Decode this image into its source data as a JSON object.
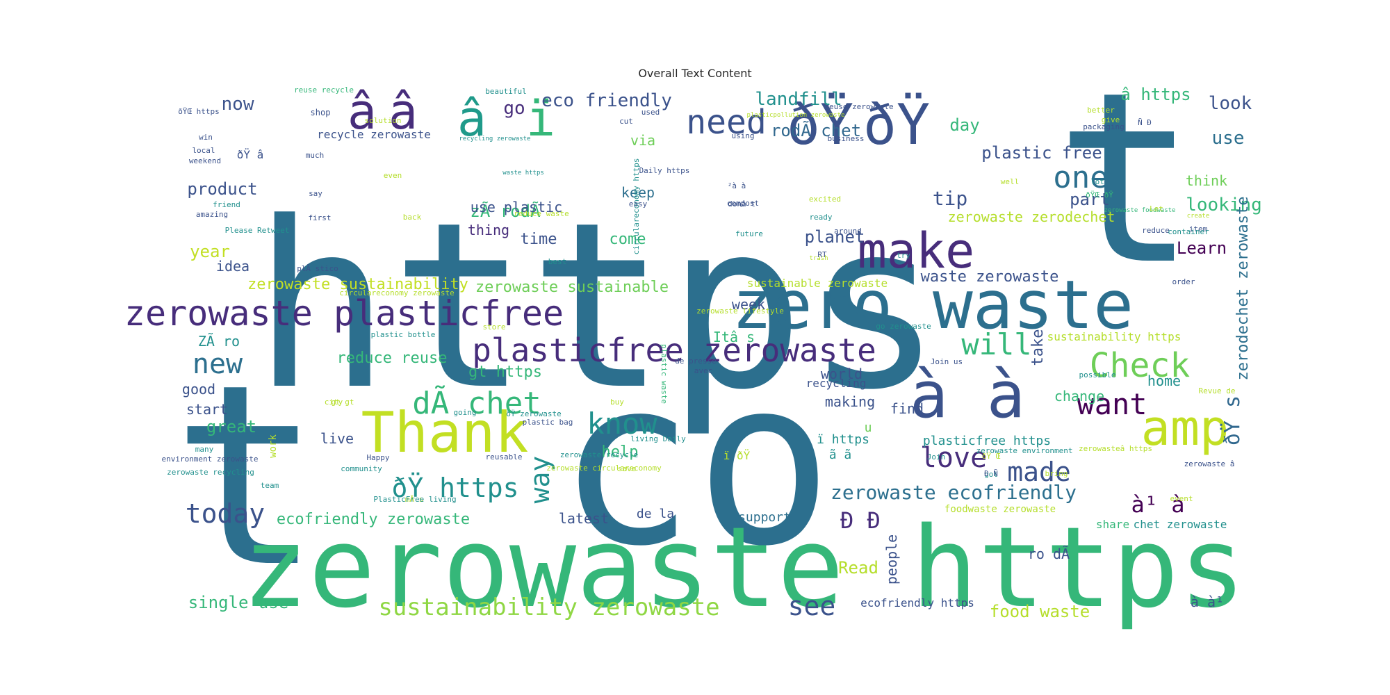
{
  "chart_data": {
    "type": "wordcloud",
    "title": "Overall Text Content",
    "colormap": "viridis",
    "words": [
      {
        "text": "https",
        "weight": 1.0,
        "color": "#2c6f8e"
      },
      {
        "text": "t",
        "weight": 0.98,
        "color": "#2c6f8e"
      },
      {
        "text": "co",
        "weight": 0.97,
        "color": "#2c6f8e"
      },
      {
        "text": "t",
        "weight": 0.95,
        "color": "#2c6f8e"
      },
      {
        "text": "zerowaste https",
        "weight": 0.9,
        "color": "#35b779"
      },
      {
        "text": "zero waste",
        "weight": 0.55,
        "color": "#2c6f8e"
      },
      {
        "text": "ðŸ",
        "weight": 0.5,
        "color": "#3b528b"
      },
      {
        "text": "ðŸ",
        "weight": 0.5,
        "color": "#3b528b"
      },
      {
        "text": "à à",
        "weight": 0.5,
        "color": "#3b528b"
      },
      {
        "text": "make",
        "weight": 0.45,
        "color": "#472d7b"
      },
      {
        "text": "Thank",
        "weight": 0.45,
        "color": "#c2df23"
      },
      {
        "text": "amp",
        "weight": 0.45,
        "color": "#c2df23"
      },
      {
        "text": "zerowaste plasticfree",
        "weight": 0.35,
        "color": "#472d7b"
      },
      {
        "text": "plasticfree zerowaste",
        "weight": 0.35,
        "color": "#472d7b"
      },
      {
        "text": "â",
        "weight": 0.35,
        "color": "#472d7b"
      },
      {
        "text": "â",
        "weight": 0.35,
        "color": "#472d7b"
      },
      {
        "text": "â",
        "weight": 0.35,
        "color": "#1f9a8a"
      },
      {
        "text": "ï",
        "weight": 0.35,
        "color": "#35b779"
      },
      {
        "text": "need",
        "weight": 0.3,
        "color": "#3b528b"
      },
      {
        "text": "one",
        "weight": 0.3,
        "color": "#2c6f8e"
      },
      {
        "text": "new",
        "weight": 0.3,
        "color": "#2c6f8e"
      },
      {
        "text": "will",
        "weight": 0.3,
        "color": "#35b779"
      },
      {
        "text": "Check",
        "weight": 0.3,
        "color": "#6ece58"
      },
      {
        "text": "want",
        "weight": 0.3,
        "color": "#440154"
      },
      {
        "text": "dÃ chet",
        "weight": 0.3,
        "color": "#35b779"
      },
      {
        "text": "know",
        "weight": 0.3,
        "color": "#21908d"
      },
      {
        "text": "love",
        "weight": 0.3,
        "color": "#472d7b"
      },
      {
        "text": "made",
        "weight": 0.28,
        "color": "#3b528b"
      },
      {
        "text": "ðŸ https",
        "weight": 0.28,
        "color": "#21908d"
      },
      {
        "text": "today",
        "weight": 0.28,
        "color": "#3b528b"
      },
      {
        "text": "way",
        "weight": 0.28,
        "color": "#21908d"
      },
      {
        "text": "see",
        "weight": 0.28,
        "color": "#3b528b"
      },
      {
        "text": "sustainability zerowaste",
        "weight": 0.26,
        "color": "#8fd744"
      },
      {
        "text": "zerowaste ecofriendly",
        "weight": 0.24,
        "color": "#2c6f8e"
      },
      {
        "text": "ðŸ s",
        "weight": 0.24,
        "color": "#31688e"
      },
      {
        "text": "à¹ à",
        "weight": 0.22,
        "color": "#440154"
      },
      {
        "text": "Ð Ð",
        "weight": 0.22,
        "color": "#472d7b"
      },
      {
        "text": "landfill",
        "weight": 0.2,
        "color": "#21908d"
      },
      {
        "text": "eco friendly",
        "weight": 0.2,
        "color": "#3b528b"
      },
      {
        "text": "now",
        "weight": 0.2,
        "color": "#3b528b"
      },
      {
        "text": "go",
        "weight": 0.2,
        "color": "#472d7b"
      },
      {
        "text": "â https",
        "weight": 0.2,
        "color": "#35b779"
      },
      {
        "text": "look",
        "weight": 0.2,
        "color": "#3b528b"
      },
      {
        "text": "rodÃ chet",
        "weight": 0.2,
        "color": "#31688e"
      },
      {
        "text": "plastic free",
        "weight": 0.2,
        "color": "#3b528b"
      },
      {
        "text": "day",
        "weight": 0.2,
        "color": "#35b779"
      },
      {
        "text": "use",
        "weight": 0.2,
        "color": "#2c6f8e"
      },
      {
        "text": "via",
        "weight": 0.18,
        "color": "#6ece58"
      },
      {
        "text": "product",
        "weight": 0.18,
        "color": "#3b528b"
      },
      {
        "text": "zÃ rodÃ",
        "weight": 0.18,
        "color": "#35b779"
      },
      {
        "text": "keep",
        "weight": 0.18,
        "color": "#2c6f8e"
      },
      {
        "text": "tip",
        "weight": 0.2,
        "color": "#3b528b"
      },
      {
        "text": "part",
        "weight": 0.2,
        "color": "#3b528b"
      },
      {
        "text": "looking",
        "weight": 0.2,
        "color": "#35b779"
      },
      {
        "text": "think",
        "weight": 0.18,
        "color": "#6ece58"
      },
      {
        "text": "use plastic",
        "weight": 0.18,
        "color": "#3b528b"
      },
      {
        "text": "thing",
        "weight": 0.18,
        "color": "#472d7b"
      },
      {
        "text": "time",
        "weight": 0.18,
        "color": "#3b528b"
      },
      {
        "text": "come",
        "weight": 0.18,
        "color": "#35b779"
      },
      {
        "text": "planet",
        "weight": 0.2,
        "color": "#3b528b"
      },
      {
        "text": "zerowaste zerodechet",
        "weight": 0.18,
        "color": "#b5de2b"
      },
      {
        "text": "Learn",
        "weight": 0.2,
        "color": "#440154"
      },
      {
        "text": "year",
        "weight": 0.2,
        "color": "#c2df23"
      },
      {
        "text": "idea",
        "weight": 0.18,
        "color": "#3b528b"
      },
      {
        "text": "zerowaste sustainability",
        "weight": 0.2,
        "color": "#c2df23"
      },
      {
        "text": "zerowaste sustainable",
        "weight": 0.2,
        "color": "#6ece58"
      },
      {
        "text": "waste zerowaste",
        "weight": 0.2,
        "color": "#3b528b"
      },
      {
        "text": "sustainable zerowaste",
        "weight": 0.15,
        "color": "#b5de2b"
      },
      {
        "text": "zerodechet zerowaste",
        "weight": 0.18,
        "color": "#2c6f8e"
      },
      {
        "text": "week",
        "weight": 0.18,
        "color": "#3b528b"
      },
      {
        "text": "Itâ s",
        "weight": 0.18,
        "color": "#35b779"
      },
      {
        "text": "ZÃ ro",
        "weight": 0.18,
        "color": "#21908d"
      },
      {
        "text": "reduce reuse",
        "weight": 0.18,
        "color": "#35b779"
      },
      {
        "text": "gt https",
        "weight": 0.18,
        "color": "#35b779"
      },
      {
        "text": "take",
        "weight": 0.18,
        "color": "#3b528b"
      },
      {
        "text": "world",
        "weight": 0.16,
        "color": "#3b528b"
      },
      {
        "text": "recycling",
        "weight": 0.15,
        "color": "#3b528b"
      },
      {
        "text": "home",
        "weight": 0.16,
        "color": "#21908d"
      },
      {
        "text": "sustainability https",
        "weight": 0.14,
        "color": "#b5de2b"
      },
      {
        "text": "good",
        "weight": 0.16,
        "color": "#3b528b"
      },
      {
        "text": "start",
        "weight": 0.16,
        "color": "#3b528b"
      },
      {
        "text": "great",
        "weight": 0.18,
        "color": "#35b779"
      },
      {
        "text": "help",
        "weight": 0.18,
        "color": "#35b779"
      },
      {
        "text": "live",
        "weight": 0.16,
        "color": "#3b528b"
      },
      {
        "text": "making",
        "weight": 0.16,
        "color": "#3b528b"
      },
      {
        "text": "find",
        "weight": 0.18,
        "color": "#3b528b"
      },
      {
        "text": "change",
        "weight": 0.16,
        "color": "#35b779"
      },
      {
        "text": "u",
        "weight": 0.16,
        "color": "#6ece58"
      },
      {
        "text": "ï https",
        "weight": 0.16,
        "color": "#21908d"
      },
      {
        "text": "ã ã",
        "weight": 0.16,
        "color": "#21908d"
      },
      {
        "text": "plasticfree https",
        "weight": 0.16,
        "color": "#21908d"
      },
      {
        "text": "ecofriendly zerowaste",
        "weight": 0.18,
        "color": "#35b779"
      },
      {
        "text": "latest",
        "weight": 0.16,
        "color": "#3b528b"
      },
      {
        "text": "de la",
        "weight": 0.16,
        "color": "#3b528b"
      },
      {
        "text": "support",
        "weight": 0.16,
        "color": "#2c6f8e"
      },
      {
        "text": "share",
        "weight": 0.14,
        "color": "#35b779"
      },
      {
        "text": "chet zerowaste",
        "weight": 0.14,
        "color": "#21908d"
      },
      {
        "text": "single use",
        "weight": 0.18,
        "color": "#35b779"
      },
      {
        "text": "Read",
        "weight": 0.18,
        "color": "#b5de2b"
      },
      {
        "text": "people",
        "weight": 0.16,
        "color": "#3b528b"
      },
      {
        "text": "ro dÃ",
        "weight": 0.16,
        "color": "#3b528b"
      },
      {
        "text": "food waste",
        "weight": 0.18,
        "color": "#b5de2b"
      },
      {
        "text": "ecofriendly https",
        "weight": 0.14,
        "color": "#3b528b"
      },
      {
        "text": "à à¹",
        "weight": 0.16,
        "color": "#3b528b"
      },
      {
        "text": "foodwaste zerowaste",
        "weight": 0.12,
        "color": "#b5de2b"
      },
      {
        "text": "work",
        "weight": 0.12,
        "color": "#b5de2b"
      },
      {
        "text": "ï ðŸ",
        "weight": 0.12,
        "color": "#b5de2b"
      },
      {
        "text": "ðŸ â",
        "weight": 0.12,
        "color": "#3b528b"
      },
      {
        "text": "recycle zerowaste",
        "weight": 0.12,
        "color": "#3b528b"
      },
      {
        "text": "reuse recycle",
        "weight": 0.12,
        "color": "#35b779"
      },
      {
        "text": "ðŸŒ https",
        "weight": 0.08,
        "color": "#3b528b"
      },
      {
        "text": "shop",
        "weight": 0.08,
        "color": "#3b528b"
      },
      {
        "text": "solution",
        "weight": 0.08,
        "color": "#b5de2b"
      },
      {
        "text": "win",
        "weight": 0.08,
        "color": "#3b528b"
      },
      {
        "text": "local",
        "weight": 0.08,
        "color": "#3b528b"
      },
      {
        "text": "weekend",
        "weight": 0.08,
        "color": "#3b528b"
      },
      {
        "text": "much",
        "weight": 0.08,
        "color": "#3b528b"
      },
      {
        "text": "even",
        "weight": 0.08,
        "color": "#b5de2b"
      },
      {
        "text": "say",
        "weight": 0.08,
        "color": "#3b528b"
      },
      {
        "text": "friend",
        "weight": 0.08,
        "color": "#21908d"
      },
      {
        "text": "back",
        "weight": 0.08,
        "color": "#b5de2b"
      },
      {
        "text": "first",
        "weight": 0.08,
        "color": "#3b528b"
      },
      {
        "text": "amazing",
        "weight": 0.08,
        "color": "#3b528b"
      },
      {
        "text": "Please Retweet",
        "weight": 0.08,
        "color": "#21908d"
      },
      {
        "text": "plÃ stico",
        "weight": 0.08,
        "color": "#3b528b"
      },
      {
        "text": "circulareconomy zerowaste",
        "weight": 0.08,
        "color": "#b5de2b"
      },
      {
        "text": "beautiful",
        "weight": 0.08,
        "color": "#21908d"
      },
      {
        "text": "cut",
        "weight": 0.08,
        "color": "#3b528b"
      },
      {
        "text": "used",
        "weight": 0.08,
        "color": "#3b528b"
      },
      {
        "text": "using",
        "weight": 0.08,
        "color": "#3b528b"
      },
      {
        "text": "recycling zerowaste",
        "weight": 0.08,
        "color": "#21908d"
      },
      {
        "text": "plasticpollution zerowaste",
        "weight": 0.06,
        "color": "#b5de2b"
      },
      {
        "text": "business",
        "weight": 0.06,
        "color": "#3b528b"
      },
      {
        "text": "reuse zerowaste",
        "weight": 0.08,
        "color": "#3b528b"
      },
      {
        "text": "better",
        "weight": 0.08,
        "color": "#b5de2b"
      },
      {
        "text": "give",
        "weight": 0.08,
        "color": "#b5de2b"
      },
      {
        "text": "Ñ Ð",
        "weight": 0.08,
        "color": "#3b528b"
      },
      {
        "text": "packaging",
        "weight": 0.08,
        "color": "#3b528b"
      },
      {
        "text": "Daily https",
        "weight": 0.08,
        "color": "#3b528b"
      },
      {
        "text": "waste https",
        "weight": 0.08,
        "color": "#21908d"
      },
      {
        "text": "²à à",
        "weight": 0.06,
        "color": "#3b528b"
      },
      {
        "text": "donâ t",
        "weight": 0.08,
        "color": "#3b528b"
      },
      {
        "text": "circulareconomy https",
        "weight": 0.08,
        "color": "#21908d"
      },
      {
        "text": "easy",
        "weight": 0.08,
        "color": "#3b528b"
      },
      {
        "text": "compost",
        "weight": 0.08,
        "color": "#3b528b"
      },
      {
        "text": "reduce waste",
        "weight": 0.08,
        "color": "#b5de2b"
      },
      {
        "text": "excited",
        "weight": 0.08,
        "color": "#b5de2b"
      },
      {
        "text": "ready",
        "weight": 0.08,
        "color": "#21908d"
      },
      {
        "text": "future",
        "weight": 0.08,
        "color": "#21908d"
      },
      {
        "text": "around",
        "weight": 0.08,
        "color": "#3b528b"
      },
      {
        "text": "trash",
        "weight": 0.08,
        "color": "#b5de2b"
      },
      {
        "text": "RT",
        "weight": 0.06,
        "color": "#3b528b"
      },
      {
        "text": "best",
        "weight": 0.08,
        "color": "#21908d"
      },
      {
        "text": "try",
        "weight": 0.08,
        "color": "#21908d"
      },
      {
        "text": "well",
        "weight": 0.08,
        "color": "#b5de2b"
      },
      {
        "text": "lot",
        "weight": 0.08,
        "color": "#21908d"
      },
      {
        "text": "ðŸŒ ðŸ",
        "weight": 0.06,
        "color": "#35b779"
      },
      {
        "text": "zerowaste foodwaste",
        "weight": 0.06,
        "color": "#35b779"
      },
      {
        "text": "Let",
        "weight": 0.08,
        "color": "#b5de2b"
      },
      {
        "text": "reduce",
        "weight": 0.08,
        "color": "#3b528b"
      },
      {
        "text": "item",
        "weight": 0.06,
        "color": "#3b528b"
      },
      {
        "text": "create",
        "weight": 0.08,
        "color": "#b5de2b"
      },
      {
        "text": "container",
        "weight": 0.08,
        "color": "#21908d"
      },
      {
        "text": "order",
        "weight": 0.08,
        "color": "#3b528b"
      },
      {
        "text": "zerowaste lifestyle",
        "weight": 0.08,
        "color": "#b5de2b"
      },
      {
        "text": "go zerowaste",
        "weight": 0.08,
        "color": "#21908d"
      },
      {
        "text": "store",
        "weight": 0.08,
        "color": "#b5de2b"
      },
      {
        "text": "plastic bottle",
        "weight": 0.08,
        "color": "#21908d"
      },
      {
        "text": "de presse",
        "weight": 0.08,
        "color": "#3b528b"
      },
      {
        "text": "avec",
        "weight": 0.08,
        "color": "#3b528b"
      },
      {
        "text": "plastic waste",
        "weight": 0.08,
        "color": "#35b779"
      },
      {
        "text": "Join us",
        "weight": 0.08,
        "color": "#3b528b"
      },
      {
        "text": "possible",
        "weight": 0.08,
        "color": "#21908d"
      },
      {
        "text": "Revue de",
        "weight": 0.08,
        "color": "#b5de2b"
      },
      {
        "text": "gt gt",
        "weight": 0.08,
        "color": "#b5de2b"
      },
      {
        "text": "city",
        "weight": 0.08,
        "color": "#b5de2b"
      },
      {
        "text": "buy",
        "weight": 0.08,
        "color": "#b5de2b"
      },
      {
        "text": "going",
        "weight": 0.08,
        "color": "#21908d"
      },
      {
        "text": "ðŸ zerowaste",
        "weight": 0.08,
        "color": "#21908d"
      },
      {
        "text": "plastic bag",
        "weight": 0.08,
        "color": "#3b528b"
      },
      {
        "text": "many",
        "weight": 0.08,
        "color": "#21908d"
      },
      {
        "text": "environment zerowaste",
        "weight": 0.08,
        "color": "#3b528b"
      },
      {
        "text": "zerowaste recycle",
        "weight": 0.08,
        "color": "#21908d"
      },
      {
        "text": "living Daily",
        "weight": 0.08,
        "color": "#21908d"
      },
      {
        "text": "Happy",
        "weight": 0.08,
        "color": "#3b528b"
      },
      {
        "text": "reusable",
        "weight": 0.08,
        "color": "#3b528b"
      },
      {
        "text": "Join",
        "weight": 0.08,
        "color": "#21908d"
      },
      {
        "text": "zerowasteâ https",
        "weight": 0.08,
        "color": "#b5de2b"
      },
      {
        "text": "zerowaste recycling",
        "weight": 0.08,
        "color": "#21908d"
      },
      {
        "text": "zerowaste circulareconomy",
        "weight": 0.08,
        "color": "#b5de2b"
      },
      {
        "text": "ðŸ Œ",
        "weight": 0.06,
        "color": "#b5de2b"
      },
      {
        "text": "zerowaste environment",
        "weight": 0.08,
        "color": "#21908d"
      },
      {
        "text": "community",
        "weight": 0.08,
        "color": "#21908d"
      },
      {
        "text": "save",
        "weight": 0.08,
        "color": "#b5de2b"
      },
      {
        "text": "got",
        "weight": 0.08,
        "color": "#21908d"
      },
      {
        "text": "zerowaste â",
        "weight": 0.08,
        "color": "#3b528b"
      },
      {
        "text": "team",
        "weight": 0.08,
        "color": "#21908d"
      },
      {
        "text": "bring",
        "weight": 0.08,
        "color": "#b5de2b"
      },
      {
        "text": "mÃ s",
        "weight": 0.06,
        "color": "#b5de2b"
      },
      {
        "text": "event",
        "weight": 0.08,
        "color": "#b5de2b"
      },
      {
        "text": "PlasticFree living",
        "weight": 0.08,
        "color": "#21908d"
      },
      {
        "text": "Ð Ñ",
        "weight": 0.06,
        "color": "#3b528b"
      }
    ]
  }
}
